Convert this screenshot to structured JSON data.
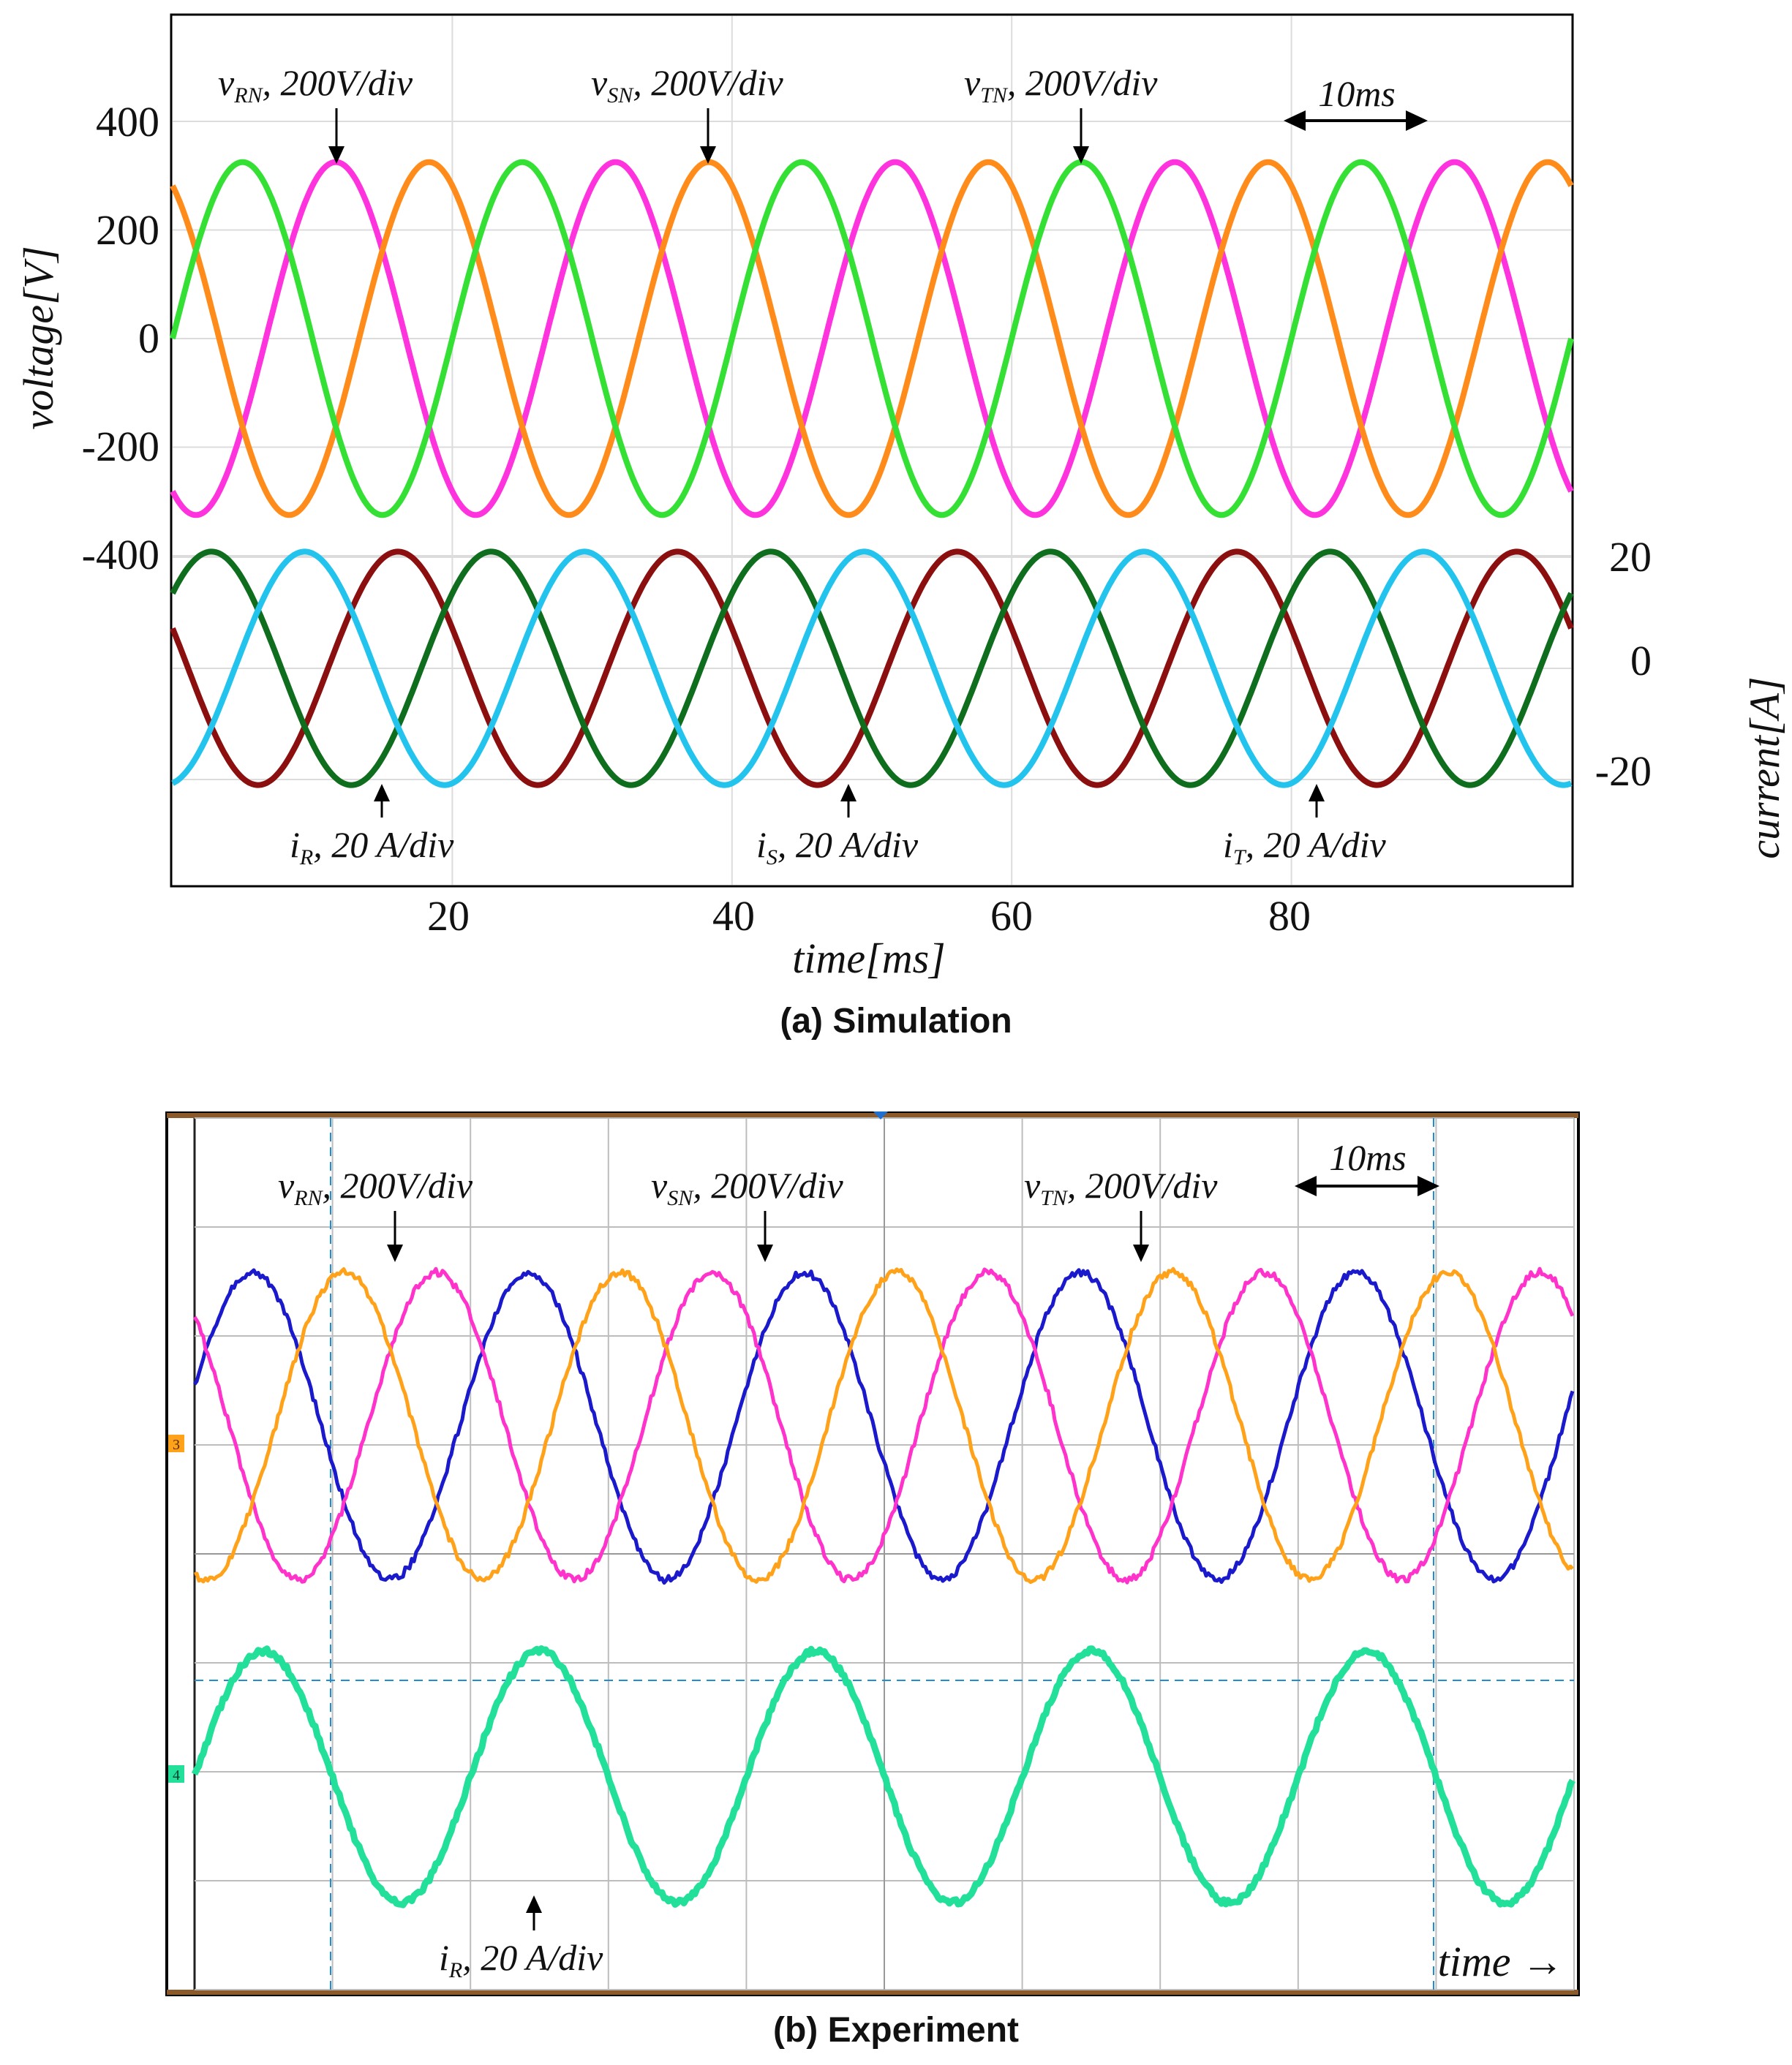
{
  "chart_data": [
    {
      "type": "line",
      "caption": "(a) Simulation",
      "xlabel": "time[ms]",
      "ylabel_left": "voltage[V]",
      "ylabel_right": "current[A]",
      "xlim": [
        0,
        100
      ],
      "x_ticks": [
        20,
        40,
        60,
        80
      ],
      "v_ticks": [
        400,
        200,
        0,
        -200,
        -400
      ],
      "i_ticks": [
        20,
        0,
        -20
      ],
      "scale_bar": "10ms",
      "frequency_hz": 50,
      "series": [
        {
          "name": "v_RN, 200V/div",
          "group": "voltage",
          "amplitude": 325,
          "phase_deg": -120,
          "color": "#ff33dd"
        },
        {
          "name": "v_SN, 200V/div",
          "group": "voltage",
          "amplitude": 325,
          "phase_deg": 120,
          "color": "#ff8c1a"
        },
        {
          "name": "v_TN, 200V/div",
          "group": "voltage",
          "amplitude": 325,
          "phase_deg": 0,
          "color": "#33e033"
        },
        {
          "name": "i_R, 20 A/div",
          "group": "current",
          "amplitude": 21,
          "phase_deg": -200,
          "color": "#8b0f0f"
        },
        {
          "name": "i_S, 20 A/div",
          "group": "current",
          "amplitude": 21,
          "phase_deg": 40,
          "color": "#0f6e1e"
        },
        {
          "name": "i_T, 20 A/div",
          "group": "current",
          "amplitude": 21,
          "phase_deg": -80,
          "color": "#22c4ee"
        }
      ],
      "labels": {
        "vRN": {
          "main": "v",
          "sub": "RN",
          "rest": ", 200V/div"
        },
        "vSN": {
          "main": "v",
          "sub": "SN",
          "rest": ", 200V/div"
        },
        "vTN": {
          "main": "v",
          "sub": "TN",
          "rest": ", 200V/div"
        },
        "iR": {
          "main": "i",
          "sub": "R",
          "rest": ", 20 A/div"
        },
        "iS": {
          "main": "i",
          "sub": "S",
          "rest": ", 20 A/div"
        },
        "iT": {
          "main": "i",
          "sub": "T",
          "rest": ", 20 A/div"
        }
      }
    },
    {
      "type": "line",
      "caption": "(b) Experiment",
      "xlabel": "time →",
      "scale_bar": "10ms",
      "cycles_shown": 5,
      "series": [
        {
          "name": "v_RN, 200V/div",
          "group": "voltage",
          "color": "#1a1acc"
        },
        {
          "name": "v_SN, 200V/div",
          "group": "voltage",
          "color": "#ff33cc"
        },
        {
          "name": "v_TN, 200V/div",
          "group": "voltage",
          "color": "#ffa21a"
        },
        {
          "name": "i_R, 20 A/div",
          "group": "current",
          "color": "#22e09a"
        }
      ],
      "channel_markers": [
        "3",
        "4"
      ],
      "labels": {
        "vRN": {
          "main": "v",
          "sub": "RN",
          "rest": ", 200V/div"
        },
        "vSN": {
          "main": "v",
          "sub": "SN",
          "rest": ", 200V/div"
        },
        "vTN": {
          "main": "v",
          "sub": "TN",
          "rest": ", 200V/div"
        },
        "iR": {
          "main": "i",
          "sub": "R",
          "rest": ", 20 A/div"
        }
      }
    }
  ]
}
